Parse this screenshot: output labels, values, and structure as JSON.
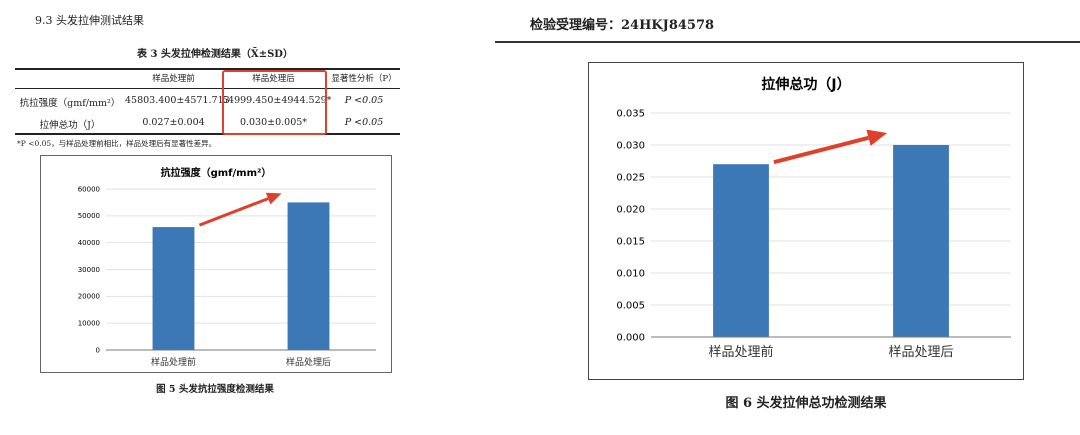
{
  "left_page": {
    "section_title": "9.3 头发拉伸测试结果",
    "table": {
      "title": "表 3 头发拉伸检测结果（X̄±SD）",
      "headers": [
        "",
        "样品处理前",
        "样品处理后",
        "显著性分析（P）"
      ],
      "rows": [
        [
          "抗拉强度（gmf/mm²）",
          "45803.400±4571.713",
          "54999.450±4944.529*",
          "P <0.05"
        ],
        [
          "拉伸总功（J）",
          "0.027±0.004",
          "0.030±0.005*",
          "P <0.05"
        ]
      ],
      "footnote": "*P <0.05，与样品处理前相比，样品处理后有显著性差异。",
      "highlight_color": "#d9432f"
    },
    "figure_caption": "图 5 头发抗拉强度检测结果"
  },
  "right_page": {
    "header": "检验受理编号：24HKJ84578",
    "figure_caption": "图 6 头发拉伸总功检测结果"
  },
  "chart_data": [
    {
      "type": "bar",
      "title": "抗拉强度（gmf/mm²）",
      "categories": [
        "样品处理前",
        "样品处理后"
      ],
      "values": [
        45803.4,
        54999.45
      ],
      "ylim": [
        0,
        60000
      ],
      "yticks": [
        "0",
        "10000",
        "20000",
        "30000",
        "40000",
        "50000",
        "60000"
      ],
      "grid": true,
      "bar_color": "#3c78b5",
      "arrow_color": "#e0402a"
    },
    {
      "type": "bar",
      "title": "拉伸总功（J）",
      "categories": [
        "样品处理前",
        "样品处理后"
      ],
      "values": [
        0.027,
        0.03
      ],
      "ylim": [
        0,
        0.035
      ],
      "yticks": [
        "0.000",
        "0.005",
        "0.010",
        "0.015",
        "0.020",
        "0.025",
        "0.030",
        "0.035"
      ],
      "grid": true,
      "bar_color": "#3c78b5",
      "arrow_color": "#e0402a"
    }
  ]
}
